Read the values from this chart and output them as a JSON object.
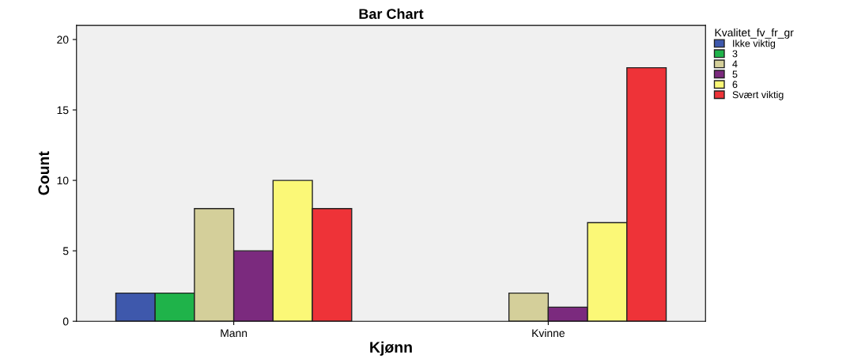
{
  "chart_data": {
    "type": "bar",
    "title": "Bar Chart",
    "xlabel": "Kjønn",
    "ylabel": "Count",
    "legend_title": "Kvalitet_fv_fr_gr",
    "categories": [
      "Mann",
      "Kvinne"
    ],
    "series": [
      {
        "name": "Ikke viktig",
        "color": "#3e58ac",
        "values": [
          2,
          null
        ]
      },
      {
        "name": "3",
        "color": "#1fb34a",
        "values": [
          2,
          null
        ]
      },
      {
        "name": "4",
        "color": "#d4cf9a",
        "values": [
          8,
          2
        ]
      },
      {
        "name": "5",
        "color": "#7b2a7e",
        "values": [
          5,
          1
        ]
      },
      {
        "name": "6",
        "color": "#fbf877",
        "values": [
          10,
          7
        ]
      },
      {
        "name": "Svært viktig",
        "color": "#ee3338",
        "values": [
          8,
          18
        ]
      }
    ],
    "ylim": [
      0,
      21
    ],
    "yticks": [
      0,
      5,
      10,
      15,
      20
    ],
    "grid": false,
    "legend": "right"
  }
}
